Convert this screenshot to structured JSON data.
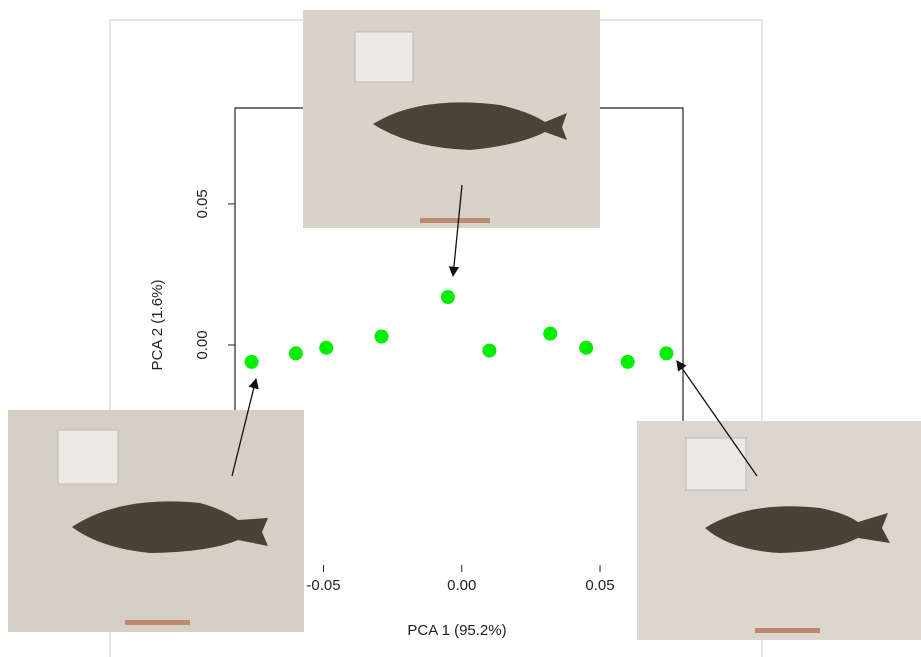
{
  "chart_data": {
    "type": "scatter",
    "x_label": "PCA 1 (95.2%)",
    "y_label": "PCA 2 (1.6%)",
    "x": [
      -0.076,
      -0.06,
      -0.049,
      -0.029,
      -0.005,
      0.01,
      0.032,
      0.045,
      0.06,
      0.074
    ],
    "values": [
      -0.006,
      -0.003,
      -0.001,
      0.003,
      0.017,
      -0.002,
      0.004,
      -0.001,
      -0.006,
      -0.003
    ],
    "color": "#00ee00",
    "xlim": [
      -0.082,
      0.08
    ],
    "ylim": [
      -0.078,
      0.084
    ],
    "xticks": [
      {
        "value": -0.05,
        "label": "-0.05"
      },
      {
        "value": 0,
        "label": "0.00"
      },
      0.05
    ],
    "yticks": [
      0.05,
      {
        "value": 0,
        "label": "0.00"
      }
    ]
  }
}
